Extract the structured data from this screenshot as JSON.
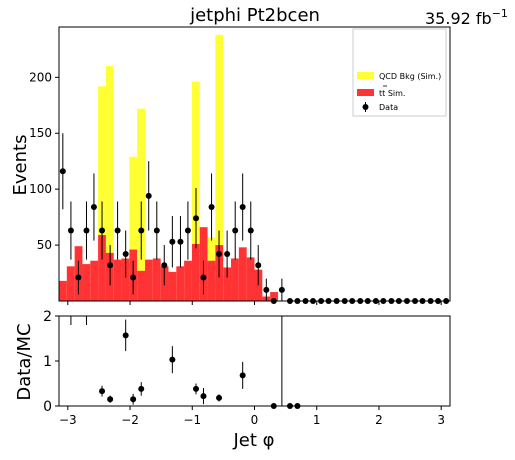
{
  "title": "jetphi  Pt2bcen",
  "lumi": "35.92 fb",
  "lumi_exp": "−1",
  "legend": {
    "qcd": "QCD Bkg (Sim.)",
    "ttbar_main": "tt",
    "ttbar_suffix": " Sim.",
    "data": "Data"
  },
  "colors": {
    "qcd": "#ffff33",
    "ttbar": "#ff3333",
    "data": "#000000"
  },
  "chart_data": [
    {
      "type": "bar",
      "panel": "main",
      "ylabel": "Events",
      "xlim": [
        -3.1416,
        3.1416
      ],
      "ylim": [
        0,
        245
      ],
      "x_ticks": [
        -3,
        -2,
        -1,
        0,
        1,
        2,
        3
      ],
      "y_ticks": [
        50,
        100,
        150,
        200
      ],
      "bin_edges": [
        -3.1416,
        -3.0159,
        -2.8903,
        -2.7646,
        -2.6389,
        -2.5133,
        -2.3876,
        -2.2619,
        -2.1363,
        -2.0106,
        -1.885,
        -1.7593,
        -1.6336,
        -1.508,
        -1.3823,
        -1.2566,
        -1.131,
        -1.0053,
        -0.8796,
        -0.754,
        -0.6283,
        -0.5027,
        -0.377,
        -0.2513,
        -0.1257,
        0.0,
        0.1257,
        0.2513,
        0.377,
        0.5027,
        0.6283,
        0.754,
        0.8796,
        1.0053,
        1.131,
        1.2566,
        1.3823,
        1.508,
        1.6336,
        1.7593,
        1.885,
        2.0106,
        2.1363,
        2.2619,
        2.3876,
        2.5133,
        2.6389,
        2.7646,
        2.8903,
        3.0159,
        3.1416
      ],
      "series": [
        {
          "name": "tt Sim.",
          "values": [
            18,
            31,
            49,
            33,
            36,
            59,
            43,
            37,
            38,
            46,
            27,
            37,
            38,
            31,
            26,
            31,
            36,
            51,
            66,
            36,
            50,
            30,
            38,
            48,
            39,
            28,
            4,
            8,
            0,
            0,
            0,
            0,
            0,
            0,
            0,
            0,
            0,
            0,
            0,
            0,
            0,
            0,
            0,
            0,
            0,
            0,
            0,
            0,
            0,
            0
          ]
        },
        {
          "name": "QCD Bkg (Sim.)",
          "values": [
            0,
            0,
            0,
            0,
            0,
            133,
            167,
            0,
            0,
            83,
            145,
            0,
            0,
            0,
            0,
            0,
            0,
            145,
            0,
            21,
            188,
            0,
            0,
            0,
            0,
            0,
            0,
            0,
            0,
            0,
            0,
            0,
            0,
            0,
            0,
            0,
            0,
            0,
            0,
            0,
            0,
            0,
            0,
            0,
            0,
            0,
            0,
            0,
            0,
            0
          ]
        },
        {
          "name": "Data",
          "x": [
            -3.08,
            -2.95,
            -2.83,
            -2.7,
            -2.58,
            -2.45,
            -2.32,
            -2.2,
            -2.07,
            -1.95,
            -1.82,
            -1.7,
            -1.57,
            -1.45,
            -1.32,
            -1.19,
            -1.07,
            -0.94,
            -0.82,
            -0.69,
            -0.57,
            -0.44,
            -0.31,
            -0.19,
            -0.06,
            0.06,
            0.19,
            0.31,
            0.44,
            0.57,
            0.69,
            0.82,
            0.94,
            1.07,
            1.19,
            1.32,
            1.45,
            1.57,
            1.7,
            1.82,
            1.95,
            2.07,
            2.2,
            2.32,
            2.45,
            2.58,
            2.7,
            2.83,
            2.95,
            3.08
          ],
          "y": [
            116,
            63,
            21,
            63,
            84,
            63,
            32,
            63,
            42,
            21,
            63,
            94,
            63,
            32,
            53,
            53,
            63,
            74,
            21,
            84,
            42,
            42,
            63,
            84,
            63,
            32,
            10,
            0,
            10,
            0,
            0,
            0,
            0,
            0,
            0,
            0,
            0,
            0,
            0,
            0,
            0,
            0,
            0,
            0,
            0,
            0,
            0,
            0,
            0,
            0
          ],
          "yerr": [
            34,
            26,
            15,
            26,
            30,
            26,
            18,
            26,
            21,
            15,
            26,
            31,
            26,
            18,
            23,
            23,
            26,
            27,
            15,
            30,
            21,
            21,
            26,
            30,
            26,
            18,
            10,
            0,
            10,
            0,
            0,
            0,
            0,
            0,
            0,
            0,
            0,
            0,
            0,
            0,
            0,
            0,
            0,
            0,
            0,
            0,
            0,
            0,
            0,
            0
          ]
        }
      ]
    },
    {
      "type": "scatter",
      "panel": "ratio",
      "xlabel": "Jet φ",
      "ylabel": "Data/MC",
      "xlim": [
        -3.1416,
        3.1416
      ],
      "ylim": [
        0,
        2
      ],
      "x_ticks": [
        -3,
        -2,
        -1,
        0,
        1,
        2,
        3
      ],
      "y_ticks": [
        0,
        1,
        2
      ],
      "x": [
        -2.45,
        -2.32,
        -2.07,
        -1.95,
        -1.82,
        -1.32,
        -0.94,
        -0.82,
        -0.57,
        -0.19,
        0.31,
        0.57,
        0.69
      ],
      "y": [
        0.33,
        0.15,
        1.57,
        0.15,
        0.38,
        1.03,
        0.38,
        0.22,
        0.18,
        0.68,
        0.0,
        0.0,
        0.0
      ],
      "yerr": [
        0.12,
        0.08,
        0.35,
        0.12,
        0.15,
        0.3,
        0.12,
        0.18,
        0.08,
        0.3,
        0.0,
        0.0,
        0.0
      ]
    }
  ]
}
